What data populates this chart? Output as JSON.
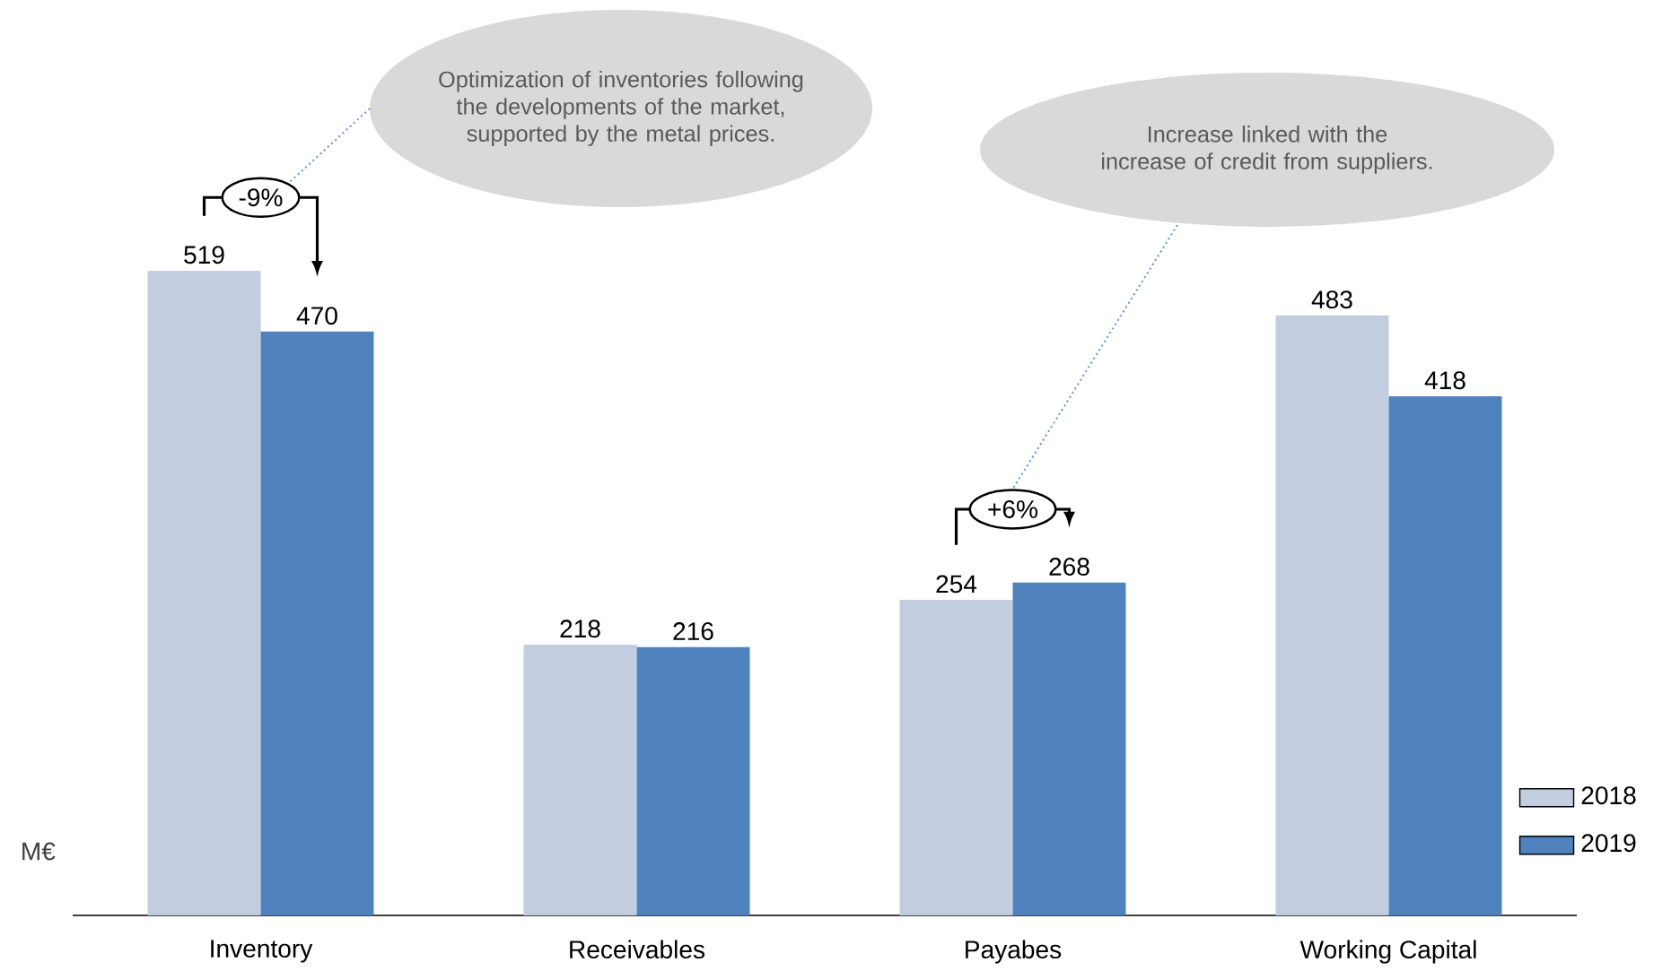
{
  "chart_data": {
    "type": "bar",
    "ylabel": "M€",
    "categories": [
      "Inventory",
      "Receivables",
      "Payabes",
      "Working Capital"
    ],
    "series": [
      {
        "name": "2018",
        "color": "#c3cde0",
        "values": [
          519,
          218,
          254,
          483
        ]
      },
      {
        "name": "2019",
        "color": "#4f81bd",
        "values": [
          470,
          216,
          268,
          418
        ]
      }
    ],
    "data_labels": true,
    "legend": "bottom right",
    "annotations": [
      "Optimization of inventories following the developments of the market, supported by the metal prices.",
      "Increase linked with the increase of credit from suppliers.",
      "-9%",
      "+6%"
    ]
  }
}
